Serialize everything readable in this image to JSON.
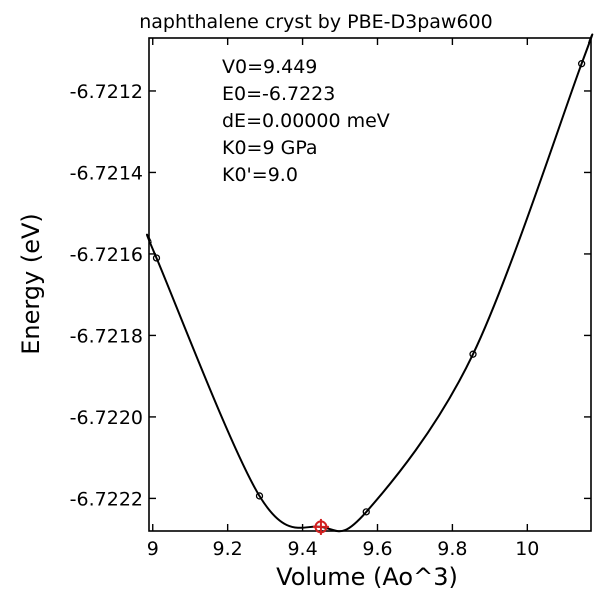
{
  "chart_data": {
    "type": "line",
    "title": "naphthalene cryst by PBE-D3paw600",
    "xlabel": "Volume (Ao^3)",
    "ylabel": "Energy (eV)",
    "xlim": [
      8.99,
      10.17
    ],
    "ylim": [
      -6.72228,
      -6.72107
    ],
    "x_ticks": [
      9,
      9.2,
      9.4,
      9.6,
      9.8,
      10
    ],
    "x_tick_labels": [
      "9",
      "9.2",
      "9.4",
      "9.6",
      "9.8",
      "10"
    ],
    "y_ticks": [
      -6.7212,
      -6.7214,
      -6.7216,
      -6.7218,
      -6.722,
      -6.7222
    ],
    "y_tick_labels": [
      "-6.7212",
      "-6.7214",
      "-6.7216",
      "-6.7218",
      "-6.7220",
      "-6.7222"
    ],
    "grid": false,
    "series": [
      {
        "points": [
          {
            "x": 9.01,
            "y": -6.72161
          },
          {
            "x": 9.285,
            "y": -6.722194
          },
          {
            "x": 9.57,
            "y": -6.722233
          },
          {
            "x": 9.855,
            "y": -6.721846
          },
          {
            "x": 10.145,
            "y": -6.721133
          }
        ]
      }
    ],
    "fit": {
      "V0": 9.449,
      "E0": -6.72227,
      "curve_color": "#000000",
      "point_color": "#000000"
    },
    "minimum_marker": {
      "x": 9.449,
      "y": -6.72227,
      "color": "#d22020"
    },
    "annotations": [
      "V0=9.449",
      "E0=-6.7223",
      "dE=0.00000 meV",
      "K0=9 GPa",
      "K0'=9.0"
    ]
  }
}
